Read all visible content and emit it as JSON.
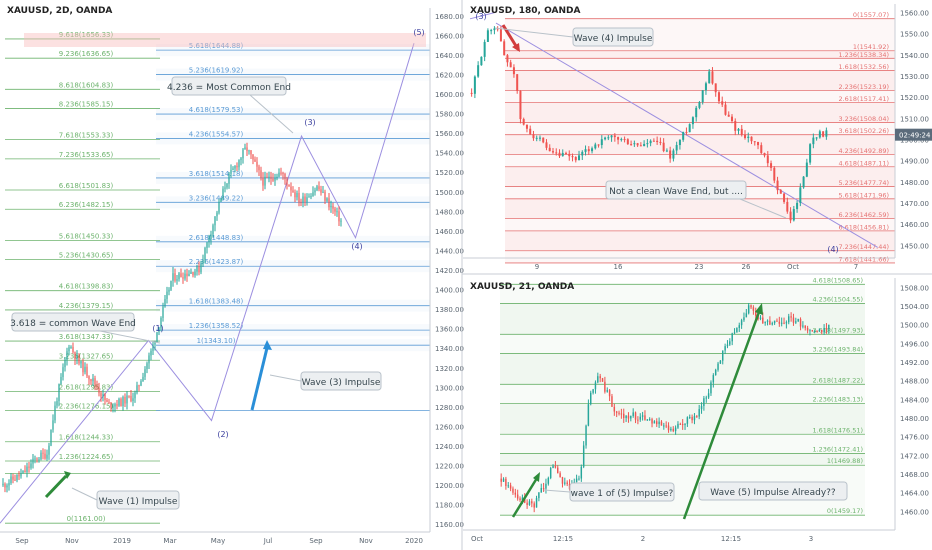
{
  "panels": {
    "left": {
      "title": "XAUUSD, 2D, OANDA"
    },
    "top_right": {
      "title": "XAUUSD, 180, OANDA",
      "time": "02:49:24"
    },
    "bottom_right": {
      "title": "XAUUSD, 21, OANDA"
    }
  },
  "colors": {
    "up": "#26a69a",
    "down": "#ef5350",
    "fib_green": "#6db36d",
    "fib_blue": "#5b9bd5",
    "fib_red": "#e57373",
    "wave_line": "#9c8fe0",
    "impulse_green": "#2e8b3a",
    "impulse_blue": "#2a8fd8",
    "impulse_red": "#d23c3c",
    "price_tag": "#5b6b7b"
  },
  "chart_data": [
    {
      "type": "candlestick",
      "title": "XAUUSD, 2D, OANDA",
      "x_ticks": [
        "Sep",
        "Nov",
        "2019",
        "Mar",
        "May",
        "Jul",
        "Sep",
        "Nov",
        "2020"
      ],
      "ylim": [
        1152,
        1688
      ],
      "y_ticks": [
        1160,
        1180,
        1200,
        1220,
        1240,
        1260,
        1280,
        1300,
        1320,
        1340,
        1360,
        1380,
        1400,
        1420,
        1440,
        1460,
        1480,
        1500,
        1520,
        1540,
        1560,
        1580,
        1600,
        1620,
        1640,
        1660,
        1680
      ],
      "fib_green": [
        {
          "label": "9.618(1656.33)",
          "value": 1656.33
        },
        {
          "label": "9.236(1636.65)",
          "value": 1636.65
        },
        {
          "label": "8.618(1604.83)",
          "value": 1604.83
        },
        {
          "label": "8.236(1585.15)",
          "value": 1585.15
        },
        {
          "label": "7.618(1553.33)",
          "value": 1553.33
        },
        {
          "label": "7.236(1533.65)",
          "value": 1533.65
        },
        {
          "label": "6.618(1501.83)",
          "value": 1501.83
        },
        {
          "label": "6.236(1482.15)",
          "value": 1482.15
        },
        {
          "label": "5.618(1450.33)",
          "value": 1450.33
        },
        {
          "label": "5.236(1430.65)",
          "value": 1430.65
        },
        {
          "label": "4.618(1398.83)",
          "value": 1398.83
        },
        {
          "label": "4.236(1379.15)",
          "value": 1379.15
        },
        {
          "label": "3.618(1347.33)",
          "value": 1347.33
        },
        {
          "label": "3.236(1327.65)",
          "value": 1327.65
        },
        {
          "label": "2.618(1295.83)",
          "value": 1295.83
        },
        {
          "label": "2.236(1276.15)",
          "value": 1276.15
        },
        {
          "label": "1.618(1244.33)",
          "value": 1244.33
        },
        {
          "label": "1.236(1224.65)",
          "value": 1224.65
        },
        {
          "label": "",
          "value": 1212.0
        },
        {
          "label": "0(1161.00)",
          "value": 1161.0
        }
      ],
      "fib_blue": [
        {
          "label": "5.618(1644.88)",
          "value": 1644.88
        },
        {
          "label": "5.236(1619.92)",
          "value": 1619.92
        },
        {
          "label": "4.618(1579.53)",
          "value": 1579.53
        },
        {
          "label": "4.236(1554.57)",
          "value": 1554.57
        },
        {
          "label": "3.618(1514.18)",
          "value": 1514.18
        },
        {
          "label": "3.236(1489.22)",
          "value": 1489.22
        },
        {
          "label": "2.618(1448.83)",
          "value": 1448.83
        },
        {
          "label": "2.236(1423.87)",
          "value": 1423.87
        },
        {
          "label": "1.618(1383.48)",
          "value": 1383.48
        },
        {
          "label": "1.236(1358.52)",
          "value": 1358.52
        },
        {
          "label": "1(1343.10)",
          "value": 1343.1
        }
      ],
      "annotations": {
        "common_end": "4.236 = Most Common End",
        "wave_end": "3.618 = common Wave End",
        "wave3": "Wave (3) Impulse",
        "wave1": "Wave (1) Impulse"
      },
      "wave_labels": [
        "(1)",
        "(2)",
        "(3)",
        "(4)",
        "(5)"
      ],
      "wave_path": [
        [
          0.0,
          1161
        ],
        [
          0.165,
          1348
        ],
        [
          0.235,
          1266
        ],
        [
          0.335,
          1557
        ],
        [
          0.395,
          1453
        ],
        [
          0.46,
          1652
        ]
      ],
      "candles": {
        "start": 1200,
        "end": 1470,
        "count": 170,
        "seed": 11,
        "anchors": [
          [
            0,
            1200
          ],
          [
            0.06,
            1212
          ],
          [
            0.1,
            1228
          ],
          [
            0.13,
            1232
          ],
          [
            0.155,
            1282
          ],
          [
            0.195,
            1345
          ],
          [
            0.225,
            1325
          ],
          [
            0.27,
            1305
          ],
          [
            0.31,
            1282
          ],
          [
            0.35,
            1285
          ],
          [
            0.39,
            1292
          ],
          [
            0.44,
            1338
          ],
          [
            0.5,
            1412
          ],
          [
            0.58,
            1421
          ],
          [
            0.66,
            1510
          ],
          [
            0.72,
            1545
          ],
          [
            0.77,
            1510
          ],
          [
            0.82,
            1520
          ],
          [
            0.88,
            1490
          ],
          [
            0.93,
            1505
          ],
          [
            1.0,
            1470
          ]
        ]
      }
    },
    {
      "type": "candlestick",
      "title": "XAUUSD, 180, OANDA",
      "x_ticks": [
        "9",
        "16",
        "23",
        "26",
        "Oct",
        "7"
      ],
      "ylim": [
        1444,
        1564
      ],
      "y_ticks": [
        1450,
        1460,
        1470,
        1480,
        1490,
        1500,
        1510,
        1520,
        1530,
        1540,
        1550,
        1560
      ],
      "fib_levels": [
        {
          "label": "0(1557.07)",
          "value": 1557.07
        },
        {
          "label": "1(1541.92)",
          "value": 1541.92
        },
        {
          "label": "1.236(1538.34)",
          "value": 1538.34
        },
        {
          "label": "1.618(1532.56)",
          "value": 1532.56
        },
        {
          "label": "2.236(1523.19)",
          "value": 1523.19
        },
        {
          "label": "2.618(1517.41)",
          "value": 1517.41
        },
        {
          "label": "3.236(1508.04)",
          "value": 1508.04
        },
        {
          "label": "3.618(1502.26)",
          "value": 1502.26
        },
        {
          "label": "4.236(1492.89)",
          "value": 1492.89
        },
        {
          "label": "4.618(1487.11)",
          "value": 1487.11
        },
        {
          "label": "5.236(1477.74)",
          "value": 1477.74
        },
        {
          "label": "5.618(1471.96)",
          "value": 1471.96
        },
        {
          "label": "6.236(1462.59)",
          "value": 1462.59
        },
        {
          "label": "6.618(1456.81)",
          "value": 1456.81
        },
        {
          "label": "7.236(1447.44)",
          "value": 1447.44
        },
        {
          "label": "7.618(1441.66)",
          "value": 1441.66
        }
      ],
      "current_price": 1502.26,
      "annotations": {
        "wave4": "Wave (4) Impulse",
        "not_clean": "Not a clean Wave End, but ...."
      },
      "wave_labels": [
        "(3)",
        "(4)"
      ],
      "wave_path": [
        [
          0.0,
          1555
        ],
        [
          0.96,
          1449
        ]
      ],
      "candles": {
        "start": 1522,
        "end": 1503,
        "count": 110,
        "seed": 29,
        "anchors": [
          [
            0,
            1522
          ],
          [
            0.04,
            1549
          ],
          [
            0.07,
            1555
          ],
          [
            0.09,
            1540
          ],
          [
            0.12,
            1532
          ],
          [
            0.14,
            1507
          ],
          [
            0.19,
            1500
          ],
          [
            0.22,
            1493
          ],
          [
            0.3,
            1491
          ],
          [
            0.35,
            1498
          ],
          [
            0.4,
            1501
          ],
          [
            0.47,
            1497
          ],
          [
            0.52,
            1499
          ],
          [
            0.56,
            1492
          ],
          [
            0.62,
            1509
          ],
          [
            0.67,
            1532
          ],
          [
            0.7,
            1517
          ],
          [
            0.74,
            1506
          ],
          [
            0.8,
            1498
          ],
          [
            0.84,
            1487
          ],
          [
            0.88,
            1470
          ],
          [
            0.9,
            1462
          ],
          [
            0.93,
            1478
          ],
          [
            0.96,
            1502
          ],
          [
            1.0,
            1503
          ]
        ]
      }
    },
    {
      "type": "candlestick",
      "title": "XAUUSD, 21, OANDA",
      "x_ticks": [
        "Oct",
        "12:15",
        "2",
        "12:15",
        "3"
      ],
      "ylim": [
        1456,
        1510
      ],
      "y_ticks": [
        1460,
        1464,
        1468,
        1472,
        1476,
        1480,
        1484,
        1488,
        1492,
        1496,
        1500,
        1504,
        1508
      ],
      "fib_levels": [
        {
          "label": "4.618(1508.65)",
          "value": 1508.65
        },
        {
          "label": "4.236(1504.55)",
          "value": 1504.55
        },
        {
          "label": "3.618(1497.93)",
          "value": 1497.93
        },
        {
          "label": "3.236(1493.84)",
          "value": 1493.84
        },
        {
          "label": "2.618(1487.22)",
          "value": 1487.22
        },
        {
          "label": "2.236(1483.13)",
          "value": 1483.13
        },
        {
          "label": "1.618(1476.51)",
          "value": 1476.51
        },
        {
          "label": "1.236(1472.41)",
          "value": 1472.41
        },
        {
          "label": "1(1469.88)",
          "value": 1469.88
        },
        {
          "label": "0(1459.17)",
          "value": 1459.17
        }
      ],
      "annotations": {
        "wave1of5": "wave 1 of (5) Impulse?",
        "wave5": "Wave (5) Impulse Already??"
      },
      "candles": {
        "start": 1467,
        "end": 1500,
        "count": 140,
        "seed": 47,
        "anchors": [
          [
            0,
            1467
          ],
          [
            0.05,
            1463
          ],
          [
            0.1,
            1461
          ],
          [
            0.16,
            1470
          ],
          [
            0.2,
            1465
          ],
          [
            0.24,
            1467
          ],
          [
            0.27,
            1485
          ],
          [
            0.3,
            1489
          ],
          [
            0.35,
            1481
          ],
          [
            0.45,
            1480
          ],
          [
            0.52,
            1477
          ],
          [
            0.56,
            1479
          ],
          [
            0.6,
            1481
          ],
          [
            0.64,
            1487
          ],
          [
            0.68,
            1495
          ],
          [
            0.72,
            1500
          ],
          [
            0.76,
            1504
          ],
          [
            0.8,
            1500
          ],
          [
            0.84,
            1501
          ],
          [
            0.9,
            1501
          ],
          [
            0.96,
            1498
          ],
          [
            1.0,
            1500
          ]
        ]
      }
    }
  ]
}
